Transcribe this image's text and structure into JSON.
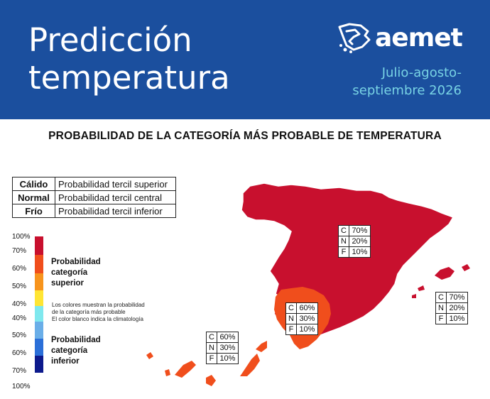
{
  "header": {
    "title_line1": "Predicción",
    "title_line2": "temperatura",
    "logo_text": "aemet",
    "period_line1": "Julio-agosto-",
    "period_line2": "septiembre 2026"
  },
  "subtitle": "PROBABILIDAD DE LA CATEGORÍA MÁS PROBABLE DE TEMPERATURA",
  "categories": [
    {
      "name": "Cálido",
      "desc": "Probabilidad tercil superior"
    },
    {
      "name": "Normal",
      "desc": "Probabilidad tercil central"
    },
    {
      "name": "Frío",
      "desc": "Probabilidad tercil inferior"
    }
  ],
  "scale": {
    "labels": [
      "100%",
      "70%",
      "60%",
      "50%",
      "40%",
      "40%",
      "50%",
      "60%",
      "70%",
      "100%"
    ],
    "upper_legend": [
      "Probabilidad",
      "categoría",
      "superior"
    ],
    "lower_legend": [
      "Probabilidad",
      "categoría",
      "inferior"
    ],
    "note_lines": [
      "Los colores muestran la probabilidad",
      "de la categoría más probable",
      "El color blanco indica la climatología"
    ],
    "colors": {
      "upper_100_70": "#c8102e",
      "upper_70_60": "#f04e1c",
      "upper_60_50": "#f7941d",
      "upper_50_40": "#ffe534",
      "lower_40_50": "#7fe8ee",
      "lower_50_60": "#6aaee8",
      "lower_60_70": "#2b6fd8",
      "lower_70_100": "#0d1a8c"
    }
  },
  "regions": {
    "peninsula": {
      "category": "Cálido",
      "color": "#c8102e"
    },
    "guadalquivir": {
      "category": "Cálido",
      "color": "#f04e1c"
    },
    "balearic": {
      "category": "Cálido",
      "color": "#c8102e"
    },
    "canary": {
      "category": "Cálido",
      "color": "#f04e1c"
    }
  },
  "prob_boxes": {
    "peninsula": [
      {
        "letter": "C",
        "value": "70%"
      },
      {
        "letter": "N",
        "value": "20%"
      },
      {
        "letter": "F",
        "value": "10%"
      }
    ],
    "balearic": [
      {
        "letter": "C",
        "value": "70%"
      },
      {
        "letter": "N",
        "value": "20%"
      },
      {
        "letter": "F",
        "value": "10%"
      }
    ],
    "south": [
      {
        "letter": "C",
        "value": "60%"
      },
      {
        "letter": "N",
        "value": "30%"
      },
      {
        "letter": "F",
        "value": "10%"
      }
    ],
    "canary": [
      {
        "letter": "C",
        "value": "60%"
      },
      {
        "letter": "N",
        "value": "30%"
      },
      {
        "letter": "F",
        "value": "10%"
      }
    ]
  }
}
